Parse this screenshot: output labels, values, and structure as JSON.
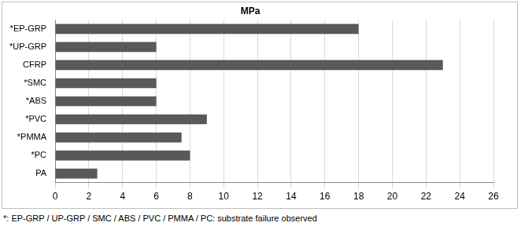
{
  "chart_data": {
    "type": "bar",
    "title": "MPa",
    "orientation": "horizontal",
    "categories": [
      "*EP-GRP",
      "*UP-GRP",
      "CFRP",
      "*SMC",
      "*ABS",
      "*PVC",
      "*PMMA",
      "*PC",
      "PA"
    ],
    "values": [
      18,
      6,
      23,
      6,
      6,
      9,
      7.5,
      8,
      2.5
    ],
    "color": "#595959",
    "xlim": [
      0,
      26
    ],
    "xticks": [
      0,
      2,
      4,
      6,
      8,
      10,
      12,
      14,
      16,
      18,
      20,
      22,
      24,
      26
    ],
    "grid": true,
    "annotations": [
      "*: EP-GRP / UP-GRP / SMC / ABS / PVC / PMMA / PC: substrate failure observed"
    ]
  }
}
